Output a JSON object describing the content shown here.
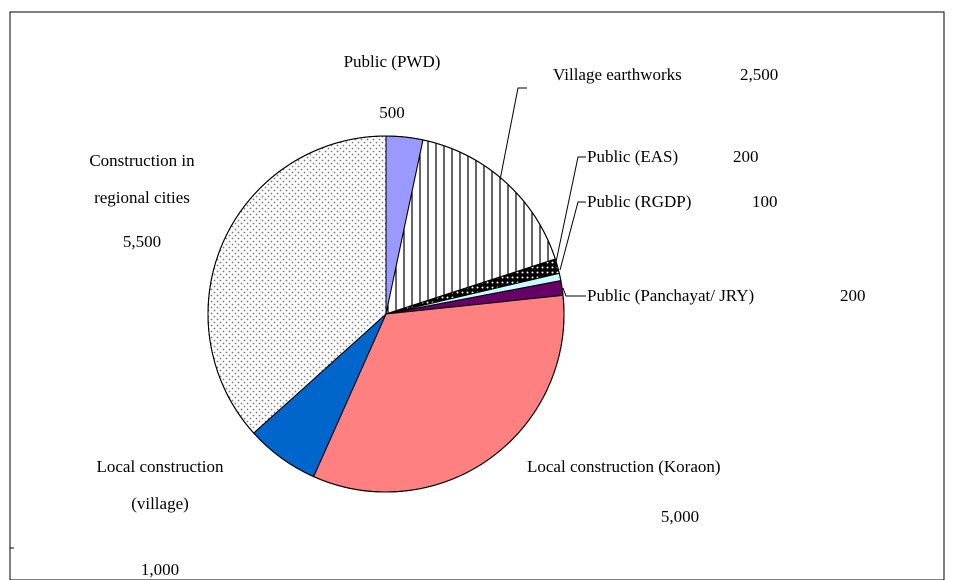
{
  "chart_data": {
    "type": "pie",
    "categories": [
      "Public (PWD)",
      "Village earthworks",
      "Public (EAS)",
      "Public (RGDP)",
      "Public (Panchayat/ JRY)",
      "Local construction (Koraon)",
      "Local construction (village)",
      "Construction in regional cities"
    ],
    "values": [
      500,
      2500,
      200,
      100,
      200,
      5000,
      1000,
      5500
    ],
    "value_labels": [
      "500",
      "2,500",
      "200",
      "100",
      "200",
      "5,000",
      "1,000",
      "5,500"
    ],
    "colors": [
      "#9999ff",
      "#ffffff",
      "#000000",
      "#ccffff",
      "#660066",
      "#ff8080",
      "#0066cc",
      "#ffffff"
    ],
    "hatches": [
      "none",
      "vertical-lines",
      "white-dots",
      "none",
      "none",
      "none",
      "none",
      "grey-dots"
    ]
  }
}
